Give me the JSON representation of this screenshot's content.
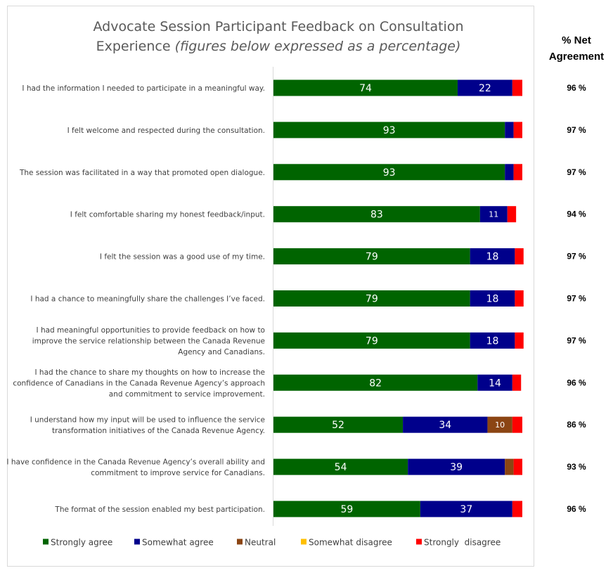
{
  "chart_data": {
    "type": "bar",
    "orientation": "horizontal",
    "stacked": true,
    "title_main": "Advocate Session Participant Feedback on Consultation",
    "title_line2": "Experience",
    "title_note": "(figures below expressed as a percentage)",
    "net_header_line1": "% Net",
    "net_header_line2": "Agreement",
    "xlim": [
      0,
      100
    ],
    "legend_position": "bottom",
    "categories": [
      [
        "I had the information I needed to participate in a meaningful way."
      ],
      [
        "I felt welcome and respected during the consultation."
      ],
      [
        "The session was facilitated in a way that promoted open dialogue."
      ],
      [
        "I felt comfortable sharing my honest feedback/input."
      ],
      [
        "I felt the session was a good use of my time."
      ],
      [
        "I had a chance to meaningfully share the challenges I’ve faced."
      ],
      [
        "I had meaningful opportunities to provide feedback on how to",
        "improve the service relationship between the Canada Revenue",
        "Agency and Canadians."
      ],
      [
        "I had the chance to share my thoughts on how to increase the",
        "confidence of Canadians in the Canada Revenue Agency’s approach",
        "and commitment to service improvement."
      ],
      [
        "I understand how my input will be used to influence the service",
        "transformation initiatives of the Canada Revenue Agency."
      ],
      [
        "I have confidence in the Canada Revenue Agency’s overall ability and",
        "commitment to improve service for Canadians."
      ],
      [
        "The format of the session enabled my best participation."
      ]
    ],
    "series": [
      {
        "name": "Strongly agree",
        "color": "#006400",
        "values": [
          74,
          93,
          93,
          83,
          79,
          79,
          79,
          82,
          52,
          54,
          59
        ],
        "labels": [
          "74",
          "93",
          "93",
          "83",
          "79",
          "79",
          "79",
          "82",
          "52",
          "54",
          "59"
        ]
      },
      {
        "name": "Somewhat agree",
        "color": "#00008b",
        "values": [
          22,
          3.5,
          3.5,
          11,
          18,
          18,
          18,
          14,
          34,
          39,
          37
        ],
        "labels": [
          "22",
          "",
          "",
          "11",
          "18",
          "18",
          "18",
          "14",
          "34",
          "39",
          "37"
        ]
      },
      {
        "name": "Neutral",
        "color": "#8b4513",
        "values": [
          0,
          0,
          0,
          0,
          0,
          0,
          0,
          0,
          10,
          3.5,
          0
        ],
        "labels": [
          "",
          "",
          "",
          "",
          "",
          "",
          "",
          "",
          "10",
          "",
          ""
        ]
      },
      {
        "name": "Somewhat disagree",
        "color": "#ffc000",
        "values": [
          0,
          0,
          0,
          0,
          0,
          0,
          0,
          0,
          0,
          0,
          0
        ],
        "labels": [
          "",
          "",
          "",
          "",
          "",
          "",
          "",
          "",
          "",
          "",
          ""
        ]
      },
      {
        "name": "Strongly  disagree",
        "color": "#ff0000",
        "values": [
          4,
          3.5,
          3.5,
          3.5,
          3.5,
          3.5,
          3.5,
          3.5,
          4,
          3.5,
          4
        ],
        "labels": [
          "",
          "",
          "",
          "",
          "",
          "",
          "",
          "",
          "",
          "",
          ""
        ]
      }
    ],
    "net_agreement": [
      "96 %",
      "97 %",
      "97 %",
      "94 %",
      "97 %",
      "97 %",
      "97 %",
      "96 %",
      "86 %",
      "93 %",
      "96 %"
    ]
  }
}
